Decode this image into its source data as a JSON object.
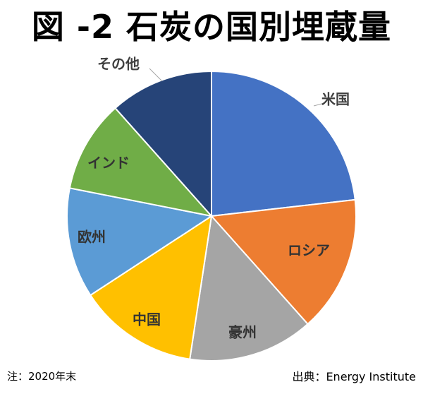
{
  "chart_data": {
    "type": "pie",
    "title": "図 -2 石炭の国別埋蔵量",
    "categories": [
      "米国",
      "ロシア",
      "豪州",
      "中国",
      "欧州",
      "インド",
      "その他"
    ],
    "values": [
      23.2,
      15.2,
      14.0,
      13.4,
      12.3,
      10.3,
      11.6
    ],
    "colors": [
      "#4472C4",
      "#ED7D31",
      "#A5A5A5",
      "#FFC000",
      "#5B9BD5",
      "#70AD47",
      "#264478"
    ],
    "label_placement": [
      "outside",
      "inside",
      "inside",
      "inside",
      "inside",
      "inside",
      "outside"
    ],
    "start_angle_deg": 0,
    "direction": "clockwise"
  },
  "footer": {
    "note": "注：2020年末",
    "source": "出典：Energy Institute"
  }
}
